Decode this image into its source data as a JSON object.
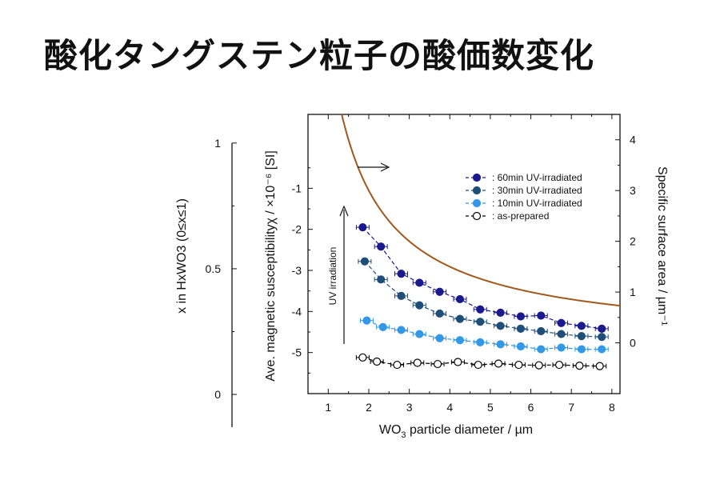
{
  "title": "酸化タングステン粒子の酸価数変化",
  "chart_data": {
    "type": "scatter",
    "xlabel": {
      "main": "WO",
      "sub": "3",
      "rest": " particle diameter / µm"
    },
    "xlim": [
      0.5,
      8.2
    ],
    "xticks": [
      1,
      2,
      3,
      4,
      5,
      6,
      7,
      8
    ],
    "y_left_label": "Ave. magnetic susceptibilityχ / ×10⁻⁶ [SI]",
    "ylim_left": [
      -6.0,
      0.8
    ],
    "yticks_left": [
      -1,
      -2,
      -3,
      -4,
      -5
    ],
    "y_right_label": "Specific surface area / µm⁻¹",
    "ylim_right": [
      -1.0,
      4.5
    ],
    "yticks_right": [
      0,
      1,
      2,
      3,
      4
    ],
    "y_outer_label": "x in HxWO3 (0≤x≤1)",
    "y_outer_ticks": [
      {
        "label": "1",
        "value": 1
      },
      {
        "label": "0.5",
        "value": 0.5
      },
      {
        "label": "0",
        "value": 0
      }
    ],
    "y_outer_value_at_chi_minus1": 0.82,
    "y_outer_value_at_chi_minus4": 0.33,
    "y_outer_range": [
      -0.13,
      1.0
    ],
    "legend": [
      "60min UV-irradiated",
      "30min UV-irradiated",
      "10min UV-irradiated",
      "as-prepared"
    ],
    "legend_position": "top-right",
    "annotation": "UV irradiation",
    "series": [
      {
        "name": "60min UV-irradiated",
        "color": "#1a1a8c",
        "fill": true,
        "x": [
          1.85,
          2.3,
          2.8,
          3.25,
          3.75,
          4.25,
          4.75,
          5.25,
          5.75,
          6.25,
          6.75,
          7.25,
          7.75
        ],
        "y": [
          -1.95,
          -2.42,
          -3.08,
          -3.3,
          -3.52,
          -3.7,
          -3.95,
          -4.03,
          -4.12,
          -4.1,
          -4.28,
          -4.35,
          -4.42
        ]
      },
      {
        "name": "30min UV-irradiated",
        "color": "#1f4e79",
        "fill": true,
        "x": [
          1.9,
          2.3,
          2.8,
          3.25,
          3.75,
          4.25,
          4.75,
          5.25,
          5.75,
          6.25,
          6.75,
          7.25,
          7.75
        ],
        "y": [
          -2.78,
          -3.22,
          -3.62,
          -3.85,
          -4.05,
          -4.18,
          -4.25,
          -4.35,
          -4.42,
          -4.48,
          -4.55,
          -4.6,
          -4.62
        ]
      },
      {
        "name": "10min UV-irradiated",
        "color": "#3399e6",
        "fill": true,
        "x": [
          1.95,
          2.35,
          2.8,
          3.25,
          3.75,
          4.25,
          4.75,
          5.25,
          5.75,
          6.25,
          6.75,
          7.25,
          7.75
        ],
        "y": [
          -4.22,
          -4.38,
          -4.45,
          -4.55,
          -4.65,
          -4.7,
          -4.75,
          -4.8,
          -4.85,
          -4.92,
          -4.88,
          -4.92,
          -4.92
        ]
      },
      {
        "name": "as-prepared",
        "color": "#000000",
        "fill": false,
        "x": [
          1.85,
          2.2,
          2.7,
          3.2,
          3.7,
          4.2,
          4.7,
          5.2,
          5.7,
          6.2,
          6.7,
          7.2,
          7.7
        ],
        "y": [
          -5.12,
          -5.22,
          -5.3,
          -5.25,
          -5.28,
          -5.23,
          -5.3,
          -5.27,
          -5.3,
          -5.31,
          -5.3,
          -5.32,
          -5.33
        ]
      }
    ],
    "ssa_curve": {
      "color": "#a0581c",
      "constant": 6.0,
      "axis": "right"
    }
  }
}
